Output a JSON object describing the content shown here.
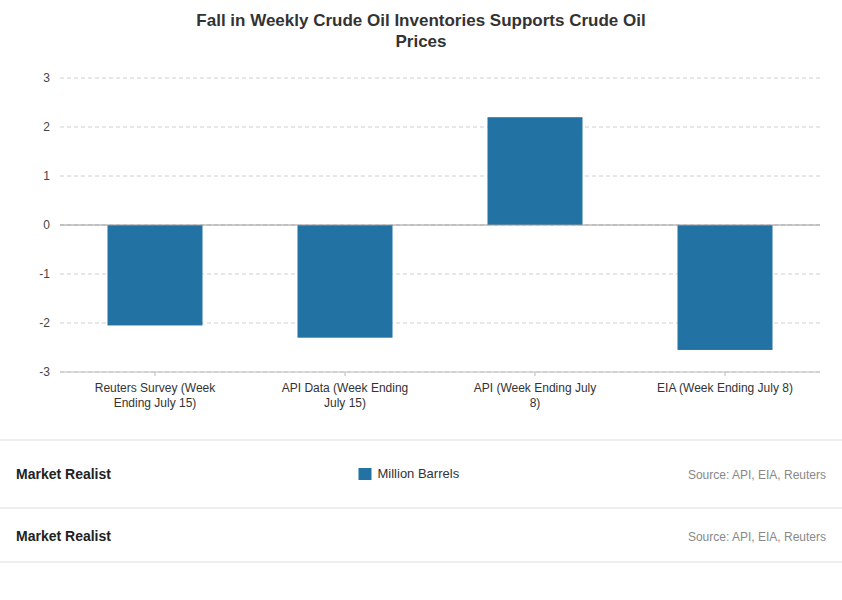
{
  "chart_data": {
    "type": "bar",
    "title": "Fall in Weekly Crude Oil Inventories Supports Crude Oil\nPrices",
    "categories": [
      "Reuters Survey (Week\nEnding July 15)",
      "API Data (Week Ending\nJuly 15)",
      "API (Week Ending July\n8)",
      "EIA (Week Ending July 8)"
    ],
    "series": [
      {
        "name": "Million Barrels",
        "color": "#2272a3",
        "values": [
          -2.05,
          -2.3,
          2.2,
          -2.55
        ]
      }
    ],
    "ylim": [
      -3,
      3
    ],
    "yticks": [
      -3,
      -2,
      -1,
      0,
      1,
      2,
      3
    ],
    "grid": true,
    "legend": "bottom",
    "annotations": [
      "Market Realist",
      "Source: API, EIA, Reuters",
      "Market Realist",
      "Source: API, EIA, Reuters"
    ]
  }
}
